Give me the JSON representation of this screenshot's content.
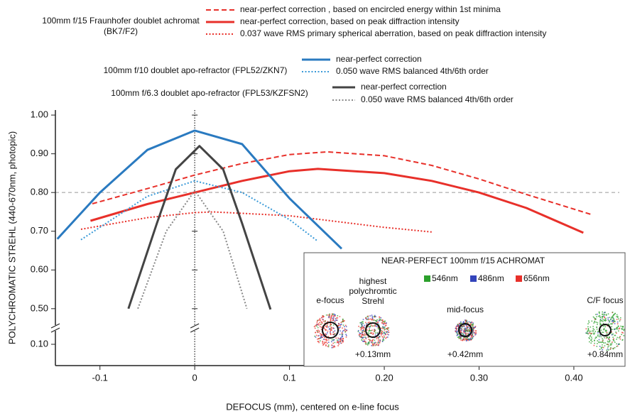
{
  "chart_data": {
    "type": "line",
    "ylabel": "POLYCHROMATIC STREHL  (440-670nm, photopic)",
    "xlabel": "DEFOCUS (mm), centered on e-line focus",
    "xlim": [
      -0.147,
      0.454
    ],
    "ylim": [
      0.353,
      1.013
    ],
    "xticks": [
      -0.1,
      0,
      0.1,
      {
        "value": 0.2,
        "label": "0.20"
      },
      {
        "value": 0.3,
        "label": "0.30"
      },
      {
        "value": 0.4,
        "label": "0.40"
      }
    ],
    "yticks": [
      {
        "value": 1.0,
        "label": "1.00"
      },
      {
        "value": 0.9,
        "label": "0.90"
      },
      {
        "value": 0.8,
        "label": "0.80"
      },
      {
        "value": 0.7,
        "label": "0.70"
      },
      {
        "value": 0.6,
        "label": "0.60"
      },
      {
        "value": 0.5,
        "label": "0.50"
      }
    ],
    "yticks_below_break": [
      {
        "value": 0.1,
        "label": "0.10"
      }
    ],
    "hline": 0.8,
    "vline": 0,
    "series_groups": [
      {
        "title": [
          "100mm f/15 Fraunhofer doublet achromat",
          "(BK7/F2)"
        ],
        "series": [
          {
            "name": "near-perfect correction , based on encircled energy within 1st minima",
            "color": "#e8302a",
            "dash": "dashed",
            "x": [
              -0.108,
              -0.05,
              0,
              0.05,
              0.1,
              0.14,
              0.2,
              0.25,
              0.3,
              0.35,
              0.42
            ],
            "values": [
              0.771,
              0.81,
              0.845,
              0.875,
              0.898,
              0.905,
              0.895,
              0.87,
              0.835,
              0.795,
              0.742
            ]
          },
          {
            "name": "near-perfect correction, based on peak diffraction intensity",
            "color": "#e8302a",
            "dash": "solid",
            "x": [
              -0.11,
              -0.05,
              0,
              0.05,
              0.1,
              0.13,
              0.2,
              0.25,
              0.3,
              0.35,
              0.41
            ],
            "values": [
              0.727,
              0.77,
              0.8,
              0.83,
              0.855,
              0.861,
              0.85,
              0.83,
              0.8,
              0.76,
              0.696
            ]
          },
          {
            "name": "0.037 wave RMS primary spherical aberration, based on peak diffraction intensity",
            "color": "#e8302a",
            "dash": "dotted",
            "x": [
              -0.12,
              -0.05,
              0,
              0.02,
              0.1,
              0.15,
              0.2,
              0.25
            ],
            "values": [
              0.705,
              0.735,
              0.748,
              0.75,
              0.74,
              0.725,
              0.71,
              0.698
            ]
          }
        ]
      },
      {
        "title": [
          "100mm f/10 doublet apo-refractor (FPL52/ZKN7)"
        ],
        "series": [
          {
            "name": "near-perfect correction",
            "color": "#2a7ac0",
            "dash": "solid",
            "x": [
              -0.145,
              -0.1,
              -0.05,
              0,
              0.05,
              0.1,
              0.155
            ],
            "values": [
              0.68,
              0.8,
              0.91,
              0.96,
              0.925,
              0.785,
              0.655
            ]
          },
          {
            "name": "0.050 wave RMS balanced 4th/6th order",
            "color": "#3a9ad8",
            "dash": "dotted",
            "x": [
              -0.12,
              -0.05,
              0,
              0.05,
              0.1,
              0.13
            ],
            "values": [
              0.678,
              0.79,
              0.83,
              0.8,
              0.73,
              0.674
            ]
          }
        ]
      },
      {
        "title": [
          "100mm f/6.3 doublet apo-refractor (FPL53/KZFSN2)"
        ],
        "series": [
          {
            "name": "near-perfect correction",
            "color": "#444444",
            "dash": "solid",
            "x": [
              -0.07,
              -0.04,
              -0.02,
              0.005,
              0.03,
              0.05,
              0.08
            ],
            "values": [
              0.5,
              0.72,
              0.86,
              0.92,
              0.86,
              0.72,
              0.498
            ]
          },
          {
            "name": "0.050 wave RMS balanced 4th/6th order",
            "color": "#888888",
            "dash": "dotted",
            "x": [
              -0.06,
              -0.03,
              0,
              0.03,
              0.055
            ],
            "values": [
              0.5,
              0.7,
              0.805,
              0.7,
              0.5
            ]
          }
        ]
      }
    ],
    "inset": {
      "title": "NEAR-PERFECT 100mm f/15 ACHROMAT",
      "wavelengths": [
        {
          "name": "546nm",
          "color": "#2ca02c"
        },
        {
          "name": "486nm",
          "color": "#3344bb"
        },
        {
          "name": "656nm",
          "color": "#e8302a"
        }
      ],
      "spots": [
        {
          "label": [
            "e-focus"
          ],
          "offset": null
        },
        {
          "label": [
            "highest",
            "polychromtic",
            "Strehl"
          ],
          "offset": "+0.13mm"
        },
        {
          "label": [
            "mid-focus"
          ],
          "offset": "+0.42mm"
        },
        {
          "label": [
            "C/F focus"
          ],
          "offset": "+0.84mm"
        }
      ]
    }
  }
}
